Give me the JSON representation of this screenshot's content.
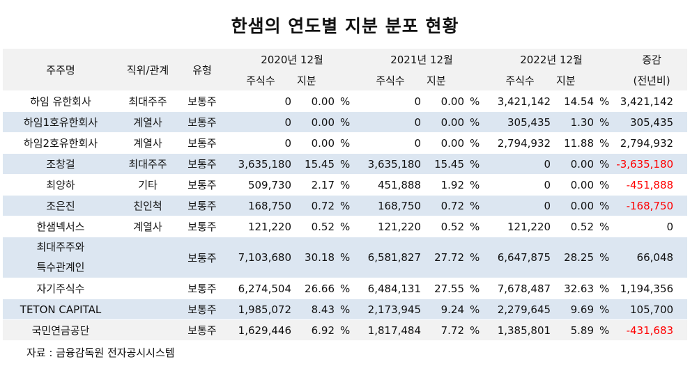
{
  "title": "한샘의 연도별 지분 분포 현황",
  "header": {
    "holder": "주주명",
    "relation": "직위/관계",
    "type": "유형",
    "year2020": "2020년 12월",
    "year2021": "2021년 12월",
    "year2022": "2022년 12월",
    "change": "증감",
    "change_sub": "(전년비)",
    "shares": "주식수",
    "stake": "지분"
  },
  "rows": [
    {
      "holder": "하임 유한회사",
      "relation": "최대주주",
      "type": "보통주",
      "s20": "0",
      "p20": "0.00",
      "s21": "0",
      "p21": "0.00",
      "s22": "3,421,142",
      "p22": "14.54",
      "change": "3,421,142",
      "pct": "%"
    },
    {
      "holder": "하임1호유한회사",
      "relation": "계열사",
      "type": "보통주",
      "s20": "0",
      "p20": "0.00",
      "s21": "0",
      "p21": "0.00",
      "s22": "305,435",
      "p22": "1.30",
      "change": "305,435",
      "pct": "%"
    },
    {
      "holder": "하임2호유한회사",
      "relation": "계열사",
      "type": "보통주",
      "s20": "0",
      "p20": "0.00",
      "s21": "0",
      "p21": "0.00",
      "s22": "2,794,932",
      "p22": "11.88",
      "change": "2,794,932",
      "pct": "%"
    },
    {
      "holder": "조창걸",
      "relation": "최대주주",
      "type": "보통주",
      "s20": "3,635,180",
      "p20": "15.45",
      "s21": "3,635,180",
      "p21": "15.45",
      "s22": "0",
      "p22": "0.00",
      "change": "-3,635,180",
      "pct": "%"
    },
    {
      "holder": "최양하",
      "relation": "기타",
      "type": "보통주",
      "s20": "509,730",
      "p20": "2.17",
      "s21": "451,888",
      "p21": "1.92",
      "s22": "0",
      "p22": "0.00",
      "change": "-451,888",
      "pct": "%"
    },
    {
      "holder": "조은진",
      "relation": "친인척",
      "type": "보통주",
      "s20": "168,750",
      "p20": "0.72",
      "s21": "168,750",
      "p21": "0.72",
      "s22": "0",
      "p22": "0.00",
      "change": "-168,750",
      "pct": "%"
    },
    {
      "holder": "한샘넥서스",
      "relation": "계열사",
      "type": "보통주",
      "s20": "121,220",
      "p20": "0.52",
      "s21": "121,220",
      "p21": "0.52",
      "s22": "121,220",
      "p22": "0.52",
      "change": "0",
      "pct": "%"
    },
    {
      "holder_line1": "최대주주와",
      "holder_line2": "특수관계인",
      "relation": "",
      "type": "보통주",
      "s20": "7,103,680",
      "p20": "30.18",
      "s21": "6,581,827",
      "p21": "27.72",
      "s22": "6,647,875",
      "p22": "28.25",
      "change": "66,048",
      "pct": "%"
    },
    {
      "holder": "자기주식수",
      "relation": "",
      "type": "보통주",
      "s20": "6,274,504",
      "p20": "26.66",
      "s21": "6,484,131",
      "p21": "27.55",
      "s22": "7,678,487",
      "p22": "32.63",
      "change": "1,194,356",
      "pct": "%"
    },
    {
      "holder": "TETON CAPITAL",
      "relation": "",
      "type": "보통주",
      "s20": "1,985,072",
      "p20": "8.43",
      "s21": "2,173,945",
      "p21": "9.24",
      "s22": "2,279,645",
      "p22": "9.69",
      "change": "105,700",
      "pct": "%"
    },
    {
      "holder": "국민연금공단",
      "relation": "",
      "type": "보통주",
      "s20": "1,629,446",
      "p20": "6.92",
      "s21": "1,817,484",
      "p21": "7.72",
      "s22": "1,385,801",
      "p22": "5.89",
      "change": "-431,683",
      "pct": "%"
    }
  ],
  "source": "자료 : 금융감독원 전자공시시스템",
  "colors": {
    "negative": "#ff0000",
    "row_alt": "#dce6f1",
    "header_bg": "#f2f2f2"
  }
}
